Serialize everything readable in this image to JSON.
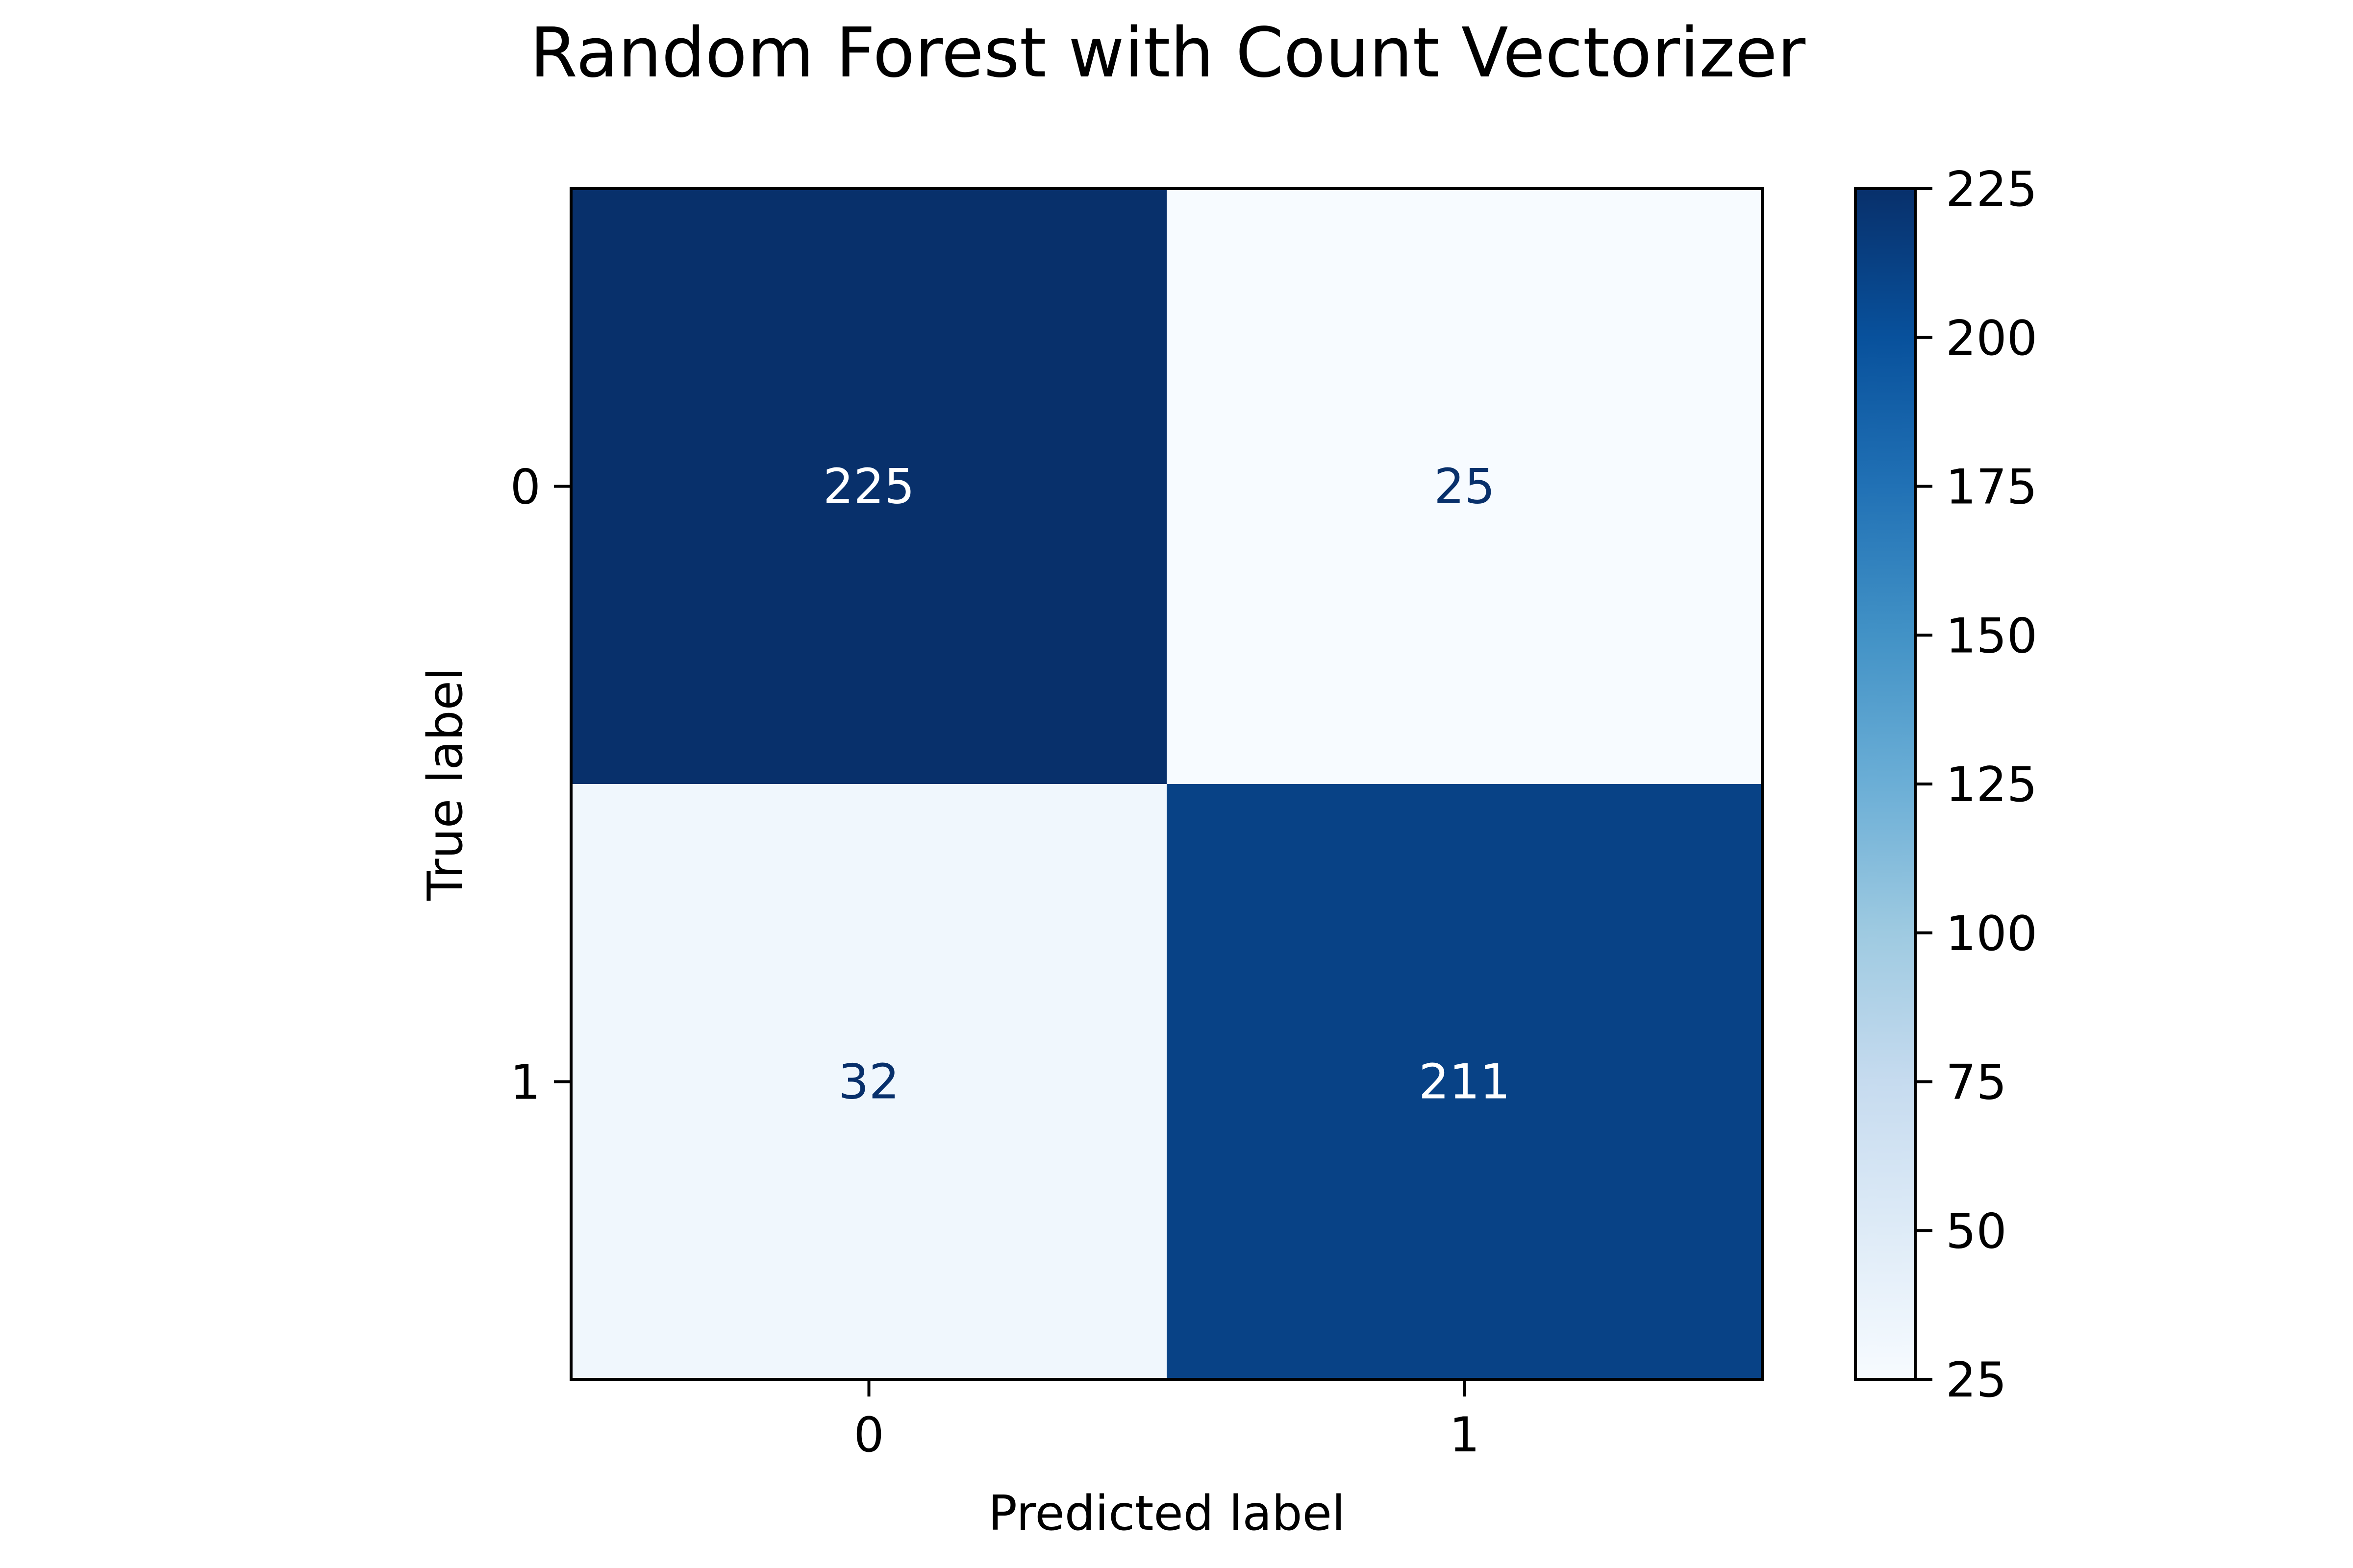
{
  "chart_data": {
    "type": "heatmap",
    "title": "Random Forest with Count Vectorizer",
    "xlabel": "Predicted label",
    "ylabel": "True label",
    "x_categories": [
      "0",
      "1"
    ],
    "y_categories": [
      "0",
      "1"
    ],
    "values": [
      [
        225,
        25
      ],
      [
        32,
        211
      ]
    ],
    "colormap": "Blues",
    "colorbar": {
      "range": [
        25,
        225
      ],
      "ticks": [
        25,
        50,
        75,
        100,
        125,
        150,
        175,
        200,
        225
      ]
    },
    "colors": {
      "low": "#f7fbff",
      "high": "#08306b",
      "text_on_dark": "#ffffff",
      "text_on_light": "#08306b"
    },
    "grid": false,
    "legend": "colorbar-right"
  }
}
